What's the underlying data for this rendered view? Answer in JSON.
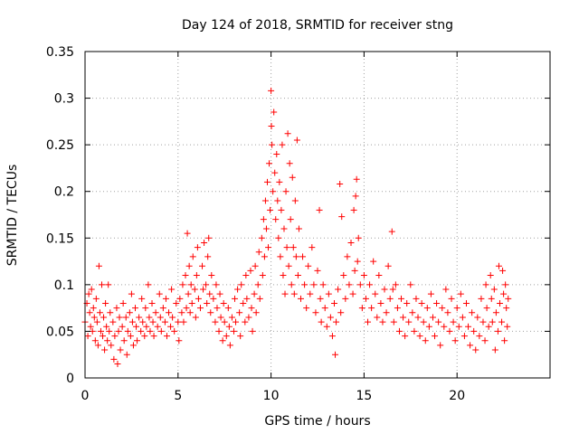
{
  "chart_data": {
    "type": "scatter",
    "title": "Day 124 of 2018, SRMTID for receiver stng",
    "xlabel": "GPS time / hours",
    "ylabel": "SRMTID / TECUs",
    "xlim": [
      0,
      25
    ],
    "ylim": [
      0,
      0.35
    ],
    "xticks": [
      0,
      5,
      10,
      15,
      20
    ],
    "xtick_labels": [
      "0",
      "5",
      "10",
      "15",
      "20"
    ],
    "yticks": [
      0,
      0.05,
      0.1,
      0.15,
      0.2,
      0.25,
      0.3,
      0.35
    ],
    "ytick_labels": [
      "0",
      "0.05",
      "0.1",
      "0.15",
      "0.2",
      "0.25",
      "0.3",
      "0.35"
    ],
    "grid": true,
    "marker": "+",
    "color": "#ff0000",
    "series": [
      {
        "name": "SRMTID stng",
        "points": [
          [
            0.0,
            0.06
          ],
          [
            0.1,
            0.08
          ],
          [
            0.15,
            0.045
          ],
          [
            0.2,
            0.09
          ],
          [
            0.25,
            0.07
          ],
          [
            0.3,
            0.055
          ],
          [
            0.35,
            0.095
          ],
          [
            0.4,
            0.05
          ],
          [
            0.45,
            0.075
          ],
          [
            0.5,
            0.065
          ],
          [
            0.55,
            0.04
          ],
          [
            0.6,
            0.085
          ],
          [
            0.65,
            0.06
          ],
          [
            0.7,
            0.035
          ],
          [
            0.75,
            0.12
          ],
          [
            0.8,
            0.07
          ],
          [
            0.85,
            0.05
          ],
          [
            0.9,
            0.1
          ],
          [
            0.95,
            0.045
          ],
          [
            1.0,
            0.065
          ],
          [
            1.05,
            0.03
          ],
          [
            1.1,
            0.08
          ],
          [
            1.15,
            0.055
          ],
          [
            1.2,
            0.04
          ],
          [
            1.25,
            0.1
          ],
          [
            1.3,
            0.05
          ],
          [
            1.35,
            0.07
          ],
          [
            1.4,
            0.035
          ],
          [
            1.5,
            0.06
          ],
          [
            1.55,
            0.02
          ],
          [
            1.6,
            0.045
          ],
          [
            1.7,
            0.075
          ],
          [
            1.75,
            0.015
          ],
          [
            1.8,
            0.05
          ],
          [
            1.85,
            0.065
          ],
          [
            1.9,
            0.03
          ],
          [
            2.0,
            0.055
          ],
          [
            2.05,
            0.08
          ],
          [
            2.1,
            0.04
          ],
          [
            2.2,
            0.065
          ],
          [
            2.25,
            0.025
          ],
          [
            2.3,
            0.05
          ],
          [
            2.4,
            0.07
          ],
          [
            2.45,
            0.045
          ],
          [
            2.5,
            0.09
          ],
          [
            2.55,
            0.06
          ],
          [
            2.6,
            0.035
          ],
          [
            2.7,
            0.075
          ],
          [
            2.75,
            0.055
          ],
          [
            2.8,
            0.04
          ],
          [
            2.9,
            0.065
          ],
          [
            3.0,
            0.05
          ],
          [
            3.05,
            0.085
          ],
          [
            3.1,
            0.06
          ],
          [
            3.2,
            0.045
          ],
          [
            3.25,
            0.075
          ],
          [
            3.3,
            0.055
          ],
          [
            3.4,
            0.1
          ],
          [
            3.45,
            0.065
          ],
          [
            3.5,
            0.05
          ],
          [
            3.6,
            0.08
          ],
          [
            3.65,
            0.06
          ],
          [
            3.7,
            0.045
          ],
          [
            3.8,
            0.07
          ],
          [
            3.9,
            0.055
          ],
          [
            4.0,
            0.09
          ],
          [
            4.05,
            0.065
          ],
          [
            4.1,
            0.05
          ],
          [
            4.2,
            0.075
          ],
          [
            4.3,
            0.06
          ],
          [
            4.35,
            0.085
          ],
          [
            4.4,
            0.045
          ],
          [
            4.5,
            0.07
          ],
          [
            4.6,
            0.055
          ],
          [
            4.65,
            0.095
          ],
          [
            4.7,
            0.065
          ],
          [
            4.8,
            0.05
          ],
          [
            4.9,
            0.08
          ],
          [
            5.0,
            0.06
          ],
          [
            5.05,
            0.04
          ],
          [
            5.1,
            0.085
          ],
          [
            5.2,
            0.07
          ],
          [
            5.25,
            0.1
          ],
          [
            5.3,
            0.06
          ],
          [
            5.4,
            0.11
          ],
          [
            5.45,
            0.075
          ],
          [
            5.5,
            0.155
          ],
          [
            5.55,
            0.09
          ],
          [
            5.6,
            0.12
          ],
          [
            5.65,
            0.07
          ],
          [
            5.7,
            0.1
          ],
          [
            5.75,
            0.08
          ],
          [
            5.8,
            0.13
          ],
          [
            5.9,
            0.095
          ],
          [
            5.95,
            0.065
          ],
          [
            6.0,
            0.11
          ],
          [
            6.05,
            0.14
          ],
          [
            6.1,
            0.085
          ],
          [
            6.2,
            0.075
          ],
          [
            6.3,
            0.12
          ],
          [
            6.35,
            0.095
          ],
          [
            6.4,
            0.145
          ],
          [
            6.5,
            0.1
          ],
          [
            6.55,
            0.08
          ],
          [
            6.6,
            0.13
          ],
          [
            6.65,
            0.15
          ],
          [
            6.7,
            0.09
          ],
          [
            6.75,
            0.07
          ],
          [
            6.8,
            0.11
          ],
          [
            6.9,
            0.085
          ],
          [
            7.0,
            0.06
          ],
          [
            7.05,
            0.1
          ],
          [
            7.1,
            0.075
          ],
          [
            7.2,
            0.05
          ],
          [
            7.25,
            0.09
          ],
          [
            7.3,
            0.065
          ],
          [
            7.4,
            0.04
          ],
          [
            7.45,
            0.08
          ],
          [
            7.5,
            0.06
          ],
          [
            7.6,
            0.045
          ],
          [
            7.7,
            0.075
          ],
          [
            7.75,
            0.055
          ],
          [
            7.8,
            0.035
          ],
          [
            7.9,
            0.065
          ],
          [
            8.0,
            0.05
          ],
          [
            8.05,
            0.085
          ],
          [
            8.1,
            0.06
          ],
          [
            8.2,
            0.095
          ],
          [
            8.3,
            0.07
          ],
          [
            8.35,
            0.045
          ],
          [
            8.4,
            0.1
          ],
          [
            8.5,
            0.08
          ],
          [
            8.6,
            0.06
          ],
          [
            8.65,
            0.11
          ],
          [
            8.7,
            0.085
          ],
          [
            8.8,
            0.065
          ],
          [
            8.9,
            0.115
          ],
          [
            8.95,
            0.075
          ],
          [
            9.0,
            0.05
          ],
          [
            9.1,
            0.09
          ],
          [
            9.15,
            0.12
          ],
          [
            9.2,
            0.07
          ],
          [
            9.3,
            0.1
          ],
          [
            9.35,
            0.135
          ],
          [
            9.4,
            0.085
          ],
          [
            9.5,
            0.15
          ],
          [
            9.55,
            0.11
          ],
          [
            9.6,
            0.17
          ],
          [
            9.65,
            0.13
          ],
          [
            9.7,
            0.19
          ],
          [
            9.75,
            0.16
          ],
          [
            9.8,
            0.21
          ],
          [
            9.85,
            0.14
          ],
          [
            9.9,
            0.23
          ],
          [
            9.95,
            0.18
          ],
          [
            10.0,
            0.308
          ],
          [
            10.02,
            0.27
          ],
          [
            10.05,
            0.25
          ],
          [
            10.1,
            0.2
          ],
          [
            10.15,
            0.285
          ],
          [
            10.2,
            0.22
          ],
          [
            10.25,
            0.17
          ],
          [
            10.3,
            0.24
          ],
          [
            10.35,
            0.19
          ],
          [
            10.4,
            0.15
          ],
          [
            10.45,
            0.21
          ],
          [
            10.5,
            0.13
          ],
          [
            10.55,
            0.18
          ],
          [
            10.6,
            0.25
          ],
          [
            10.65,
            0.11
          ],
          [
            10.7,
            0.16
          ],
          [
            10.75,
            0.09
          ],
          [
            10.8,
            0.2
          ],
          [
            10.85,
            0.14
          ],
          [
            10.9,
            0.262
          ],
          [
            10.95,
            0.12
          ],
          [
            11.0,
            0.23
          ],
          [
            11.05,
            0.17
          ],
          [
            11.1,
            0.1
          ],
          [
            11.15,
            0.215
          ],
          [
            11.2,
            0.14
          ],
          [
            11.25,
            0.09
          ],
          [
            11.3,
            0.19
          ],
          [
            11.35,
            0.13
          ],
          [
            11.4,
            0.255
          ],
          [
            11.45,
            0.11
          ],
          [
            11.5,
            0.16
          ],
          [
            11.6,
            0.085
          ],
          [
            11.7,
            0.13
          ],
          [
            11.8,
            0.1
          ],
          [
            11.9,
            0.075
          ],
          [
            12.0,
            0.12
          ],
          [
            12.1,
            0.09
          ],
          [
            12.2,
            0.14
          ],
          [
            12.3,
            0.1
          ],
          [
            12.4,
            0.07
          ],
          [
            12.5,
            0.115
          ],
          [
            12.6,
            0.18
          ],
          [
            12.65,
            0.085
          ],
          [
            12.7,
            0.06
          ],
          [
            12.8,
            0.1
          ],
          [
            12.9,
            0.075
          ],
          [
            13.0,
            0.055
          ],
          [
            13.1,
            0.09
          ],
          [
            13.2,
            0.065
          ],
          [
            13.3,
            0.045
          ],
          [
            13.4,
            0.08
          ],
          [
            13.45,
            0.025
          ],
          [
            13.5,
            0.06
          ],
          [
            13.6,
            0.095
          ],
          [
            13.7,
            0.208
          ],
          [
            13.75,
            0.07
          ],
          [
            13.8,
            0.173
          ],
          [
            13.9,
            0.11
          ],
          [
            14.0,
            0.085
          ],
          [
            14.1,
            0.13
          ],
          [
            14.2,
            0.1
          ],
          [
            14.3,
            0.145
          ],
          [
            14.4,
            0.09
          ],
          [
            14.45,
            0.18
          ],
          [
            14.5,
            0.115
          ],
          [
            14.55,
            0.195
          ],
          [
            14.6,
            0.213
          ],
          [
            14.65,
            0.125
          ],
          [
            14.7,
            0.15
          ],
          [
            14.8,
            0.1
          ],
          [
            14.9,
            0.075
          ],
          [
            15.0,
            0.11
          ],
          [
            15.1,
            0.085
          ],
          [
            15.2,
            0.06
          ],
          [
            15.3,
            0.1
          ],
          [
            15.4,
            0.075
          ],
          [
            15.5,
            0.125
          ],
          [
            15.6,
            0.09
          ],
          [
            15.7,
            0.065
          ],
          [
            15.8,
            0.11
          ],
          [
            15.9,
            0.08
          ],
          [
            16.0,
            0.06
          ],
          [
            16.1,
            0.095
          ],
          [
            16.2,
            0.07
          ],
          [
            16.3,
            0.12
          ],
          [
            16.4,
            0.085
          ],
          [
            16.5,
            0.157
          ],
          [
            16.55,
            0.095
          ],
          [
            16.6,
            0.06
          ],
          [
            16.7,
            0.1
          ],
          [
            16.8,
            0.075
          ],
          [
            16.9,
            0.05
          ],
          [
            17.0,
            0.085
          ],
          [
            17.1,
            0.065
          ],
          [
            17.2,
            0.045
          ],
          [
            17.3,
            0.08
          ],
          [
            17.4,
            0.06
          ],
          [
            17.5,
            0.1
          ],
          [
            17.6,
            0.07
          ],
          [
            17.7,
            0.05
          ],
          [
            17.8,
            0.085
          ],
          [
            17.9,
            0.065
          ],
          [
            18.0,
            0.045
          ],
          [
            18.1,
            0.08
          ],
          [
            18.2,
            0.06
          ],
          [
            18.3,
            0.04
          ],
          [
            18.4,
            0.075
          ],
          [
            18.5,
            0.055
          ],
          [
            18.6,
            0.09
          ],
          [
            18.7,
            0.065
          ],
          [
            18.8,
            0.045
          ],
          [
            18.9,
            0.08
          ],
          [
            19.0,
            0.06
          ],
          [
            19.1,
            0.035
          ],
          [
            19.2,
            0.075
          ],
          [
            19.3,
            0.055
          ],
          [
            19.4,
            0.095
          ],
          [
            19.5,
            0.07
          ],
          [
            19.6,
            0.05
          ],
          [
            19.7,
            0.085
          ],
          [
            19.8,
            0.06
          ],
          [
            19.9,
            0.04
          ],
          [
            20.0,
            0.075
          ],
          [
            20.1,
            0.055
          ],
          [
            20.2,
            0.09
          ],
          [
            20.3,
            0.065
          ],
          [
            20.4,
            0.045
          ],
          [
            20.5,
            0.08
          ],
          [
            20.6,
            0.055
          ],
          [
            20.7,
            0.035
          ],
          [
            20.8,
            0.07
          ],
          [
            20.9,
            0.05
          ],
          [
            21.0,
            0.03
          ],
          [
            21.1,
            0.065
          ],
          [
            21.2,
            0.045
          ],
          [
            21.3,
            0.085
          ],
          [
            21.4,
            0.06
          ],
          [
            21.5,
            0.04
          ],
          [
            21.55,
            0.1
          ],
          [
            21.6,
            0.075
          ],
          [
            21.7,
            0.055
          ],
          [
            21.8,
            0.11
          ],
          [
            21.85,
            0.085
          ],
          [
            21.9,
            0.06
          ],
          [
            22.0,
            0.095
          ],
          [
            22.05,
            0.03
          ],
          [
            22.1,
            0.07
          ],
          [
            22.2,
            0.05
          ],
          [
            22.25,
            0.12
          ],
          [
            22.3,
            0.08
          ],
          [
            22.4,
            0.06
          ],
          [
            22.45,
            0.115
          ],
          [
            22.5,
            0.09
          ],
          [
            22.55,
            0.04
          ],
          [
            22.6,
            0.1
          ],
          [
            22.65,
            0.075
          ],
          [
            22.7,
            0.055
          ],
          [
            22.75,
            0.085
          ]
        ]
      }
    ]
  }
}
